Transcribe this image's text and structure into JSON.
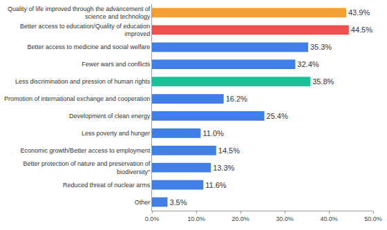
{
  "chart_data": {
    "type": "bar",
    "orientation": "horizontal",
    "categories": [
      "Quality of life improved through the advancement of science and technology",
      "Better access to education/Quality of education improved",
      "Better access to medicine and social welfare",
      "Fewer wars and conflicts",
      "Less discrimination and pression of human rights",
      "Promotion of international exchange and cooperation",
      "Development of clean energy",
      "Less poverty and hunger",
      "Economic growth/Better access to employment",
      "Better protection of nature and preservation of biodiversity\"",
      "Reduced threat of nuclear arms",
      "Other"
    ],
    "values": [
      43.9,
      44.5,
      35.3,
      32.4,
      35.8,
      16.2,
      25.4,
      11.0,
      14.5,
      13.3,
      11.6,
      3.5
    ],
    "value_labels": [
      "43.9%",
      "44.5%",
      "35.3%",
      "32.4%",
      "35.8%",
      "16.2%",
      "25.4%",
      "11.0%",
      "14.5%",
      "13.3%",
      "11.6%",
      "3.5%"
    ],
    "colors": [
      "#f5a033",
      "#ef4f4f",
      "#3f7fe6",
      "#3f7fe6",
      "#19c29b",
      "#3f7fe6",
      "#3f7fe6",
      "#3f7fe6",
      "#3f7fe6",
      "#3f7fe6",
      "#3f7fe6",
      "#3f7fe6"
    ],
    "xlim": [
      0,
      50
    ],
    "xticks": [
      {
        "value": 0,
        "label": "0.0%"
      },
      {
        "value": 10,
        "label": "10.0%"
      },
      {
        "value": 20,
        "label": "20.0%"
      },
      {
        "value": 30,
        "label": "30.0%"
      },
      {
        "value": 40,
        "label": "40.0%"
      },
      {
        "value": 50,
        "label": "50.0%"
      }
    ],
    "grid": false,
    "data_labels": true
  }
}
